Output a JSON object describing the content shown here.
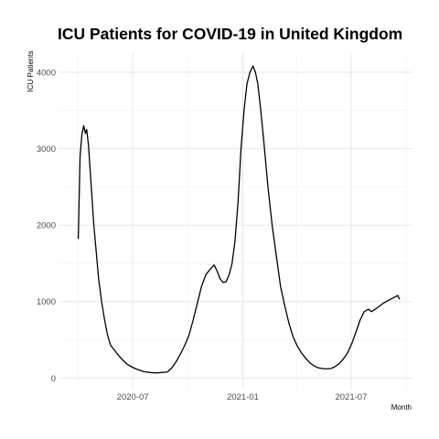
{
  "chart_data": {
    "type": "line",
    "title": "ICU Patients for COVID-19 in United Kingdom",
    "xlabel": "Month",
    "ylabel": "ICU Patients",
    "x_ticks": [
      {
        "date": "2020-07-01",
        "label": "2020-07"
      },
      {
        "date": "2021-01-01",
        "label": "2021-01"
      },
      {
        "date": "2021-07-01",
        "label": "2021-07"
      }
    ],
    "y_ticks": [
      0,
      1000,
      2000,
      3000,
      4000
    ],
    "xlim": [
      "2020-02-28",
      "2021-10-10"
    ],
    "ylim": [
      -150,
      4250
    ],
    "grid": true,
    "series": [
      {
        "color": "#000000",
        "points": [
          [
            "2020-04-01",
            1820
          ],
          [
            "2020-04-04",
            2900
          ],
          [
            "2020-04-07",
            3180
          ],
          [
            "2020-04-10",
            3300
          ],
          [
            "2020-04-13",
            3200
          ],
          [
            "2020-04-15",
            3250
          ],
          [
            "2020-04-18",
            3050
          ],
          [
            "2020-04-21",
            2700
          ],
          [
            "2020-04-24",
            2350
          ],
          [
            "2020-04-27",
            2000
          ],
          [
            "2020-05-01",
            1650
          ],
          [
            "2020-05-05",
            1300
          ],
          [
            "2020-05-10",
            1000
          ],
          [
            "2020-05-15",
            760
          ],
          [
            "2020-05-20",
            560
          ],
          [
            "2020-05-25",
            430
          ],
          [
            "2020-06-01",
            360
          ],
          [
            "2020-06-08",
            290
          ],
          [
            "2020-06-15",
            230
          ],
          [
            "2020-06-22",
            180
          ],
          [
            "2020-07-01",
            140
          ],
          [
            "2020-07-10",
            110
          ],
          [
            "2020-07-20",
            85
          ],
          [
            "2020-08-01",
            72
          ],
          [
            "2020-08-10",
            68
          ],
          [
            "2020-08-20",
            75
          ],
          [
            "2020-08-28",
            80
          ],
          [
            "2020-09-05",
            140
          ],
          [
            "2020-09-12",
            220
          ],
          [
            "2020-09-19",
            320
          ],
          [
            "2020-09-26",
            430
          ],
          [
            "2020-10-03",
            560
          ],
          [
            "2020-10-10",
            760
          ],
          [
            "2020-10-17",
            980
          ],
          [
            "2020-10-24",
            1200
          ],
          [
            "2020-10-31",
            1350
          ],
          [
            "2020-11-07",
            1420
          ],
          [
            "2020-11-14",
            1480
          ],
          [
            "2020-11-19",
            1400
          ],
          [
            "2020-11-24",
            1300
          ],
          [
            "2020-11-29",
            1250
          ],
          [
            "2020-12-04",
            1260
          ],
          [
            "2020-12-09",
            1350
          ],
          [
            "2020-12-14",
            1500
          ],
          [
            "2020-12-19",
            1800
          ],
          [
            "2020-12-24",
            2300
          ],
          [
            "2020-12-29",
            3000
          ],
          [
            "2021-01-03",
            3500
          ],
          [
            "2021-01-08",
            3850
          ],
          [
            "2021-01-13",
            4000
          ],
          [
            "2021-01-18",
            4080
          ],
          [
            "2021-01-22",
            4000
          ],
          [
            "2021-01-26",
            3850
          ],
          [
            "2021-01-31",
            3500
          ],
          [
            "2021-02-05",
            3100
          ],
          [
            "2021-02-12",
            2500
          ],
          [
            "2021-02-19",
            2000
          ],
          [
            "2021-02-26",
            1600
          ],
          [
            "2021-03-05",
            1200
          ],
          [
            "2021-03-12",
            950
          ],
          [
            "2021-03-19",
            720
          ],
          [
            "2021-03-26",
            540
          ],
          [
            "2021-04-02",
            420
          ],
          [
            "2021-04-09",
            330
          ],
          [
            "2021-04-16",
            260
          ],
          [
            "2021-04-23",
            200
          ],
          [
            "2021-04-30",
            160
          ],
          [
            "2021-05-07",
            135
          ],
          [
            "2021-05-14",
            125
          ],
          [
            "2021-05-21",
            122
          ],
          [
            "2021-05-28",
            125
          ],
          [
            "2021-06-04",
            150
          ],
          [
            "2021-06-11",
            190
          ],
          [
            "2021-06-18",
            250
          ],
          [
            "2021-06-25",
            330
          ],
          [
            "2021-07-02",
            450
          ],
          [
            "2021-07-09",
            600
          ],
          [
            "2021-07-16",
            760
          ],
          [
            "2021-07-23",
            870
          ],
          [
            "2021-07-30",
            900
          ],
          [
            "2021-08-04",
            870
          ],
          [
            "2021-08-10",
            900
          ],
          [
            "2021-08-17",
            940
          ],
          [
            "2021-08-24",
            980
          ],
          [
            "2021-08-31",
            1010
          ],
          [
            "2021-09-07",
            1040
          ],
          [
            "2021-09-12",
            1060
          ],
          [
            "2021-09-17",
            1080
          ],
          [
            "2021-09-20",
            1030
          ]
        ]
      }
    ]
  }
}
